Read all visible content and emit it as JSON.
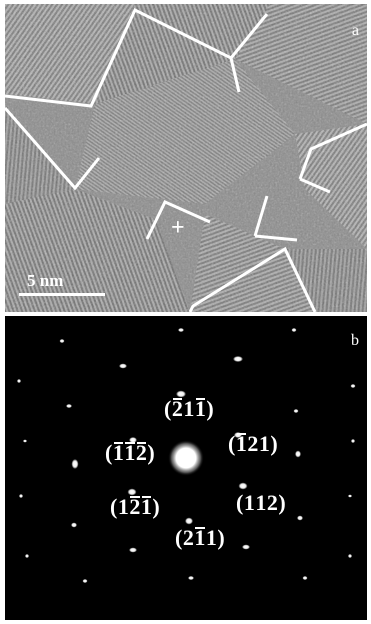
{
  "panel_a": {
    "label": "a",
    "marker": "+",
    "scale_bar_text": "5 nm"
  },
  "panel_b": {
    "label": "b",
    "indices": [
      {
        "text": "(-2 1 1-)",
        "digits": [
          "2",
          "1",
          "1"
        ],
        "bars": [
          true,
          false,
          true
        ]
      },
      {
        "text": "(-1 2 1)",
        "digits": [
          "1",
          "2",
          "1"
        ],
        "bars": [
          true,
          false,
          false
        ]
      },
      {
        "text": "(-1 -1 -2)",
        "digits": [
          "1",
          "1",
          "2"
        ],
        "bars": [
          true,
          true,
          true
        ]
      },
      {
        "text": "(1 1 2)",
        "digits": [
          "1",
          "1",
          "2"
        ],
        "bars": [
          false,
          false,
          false
        ]
      },
      {
        "text": "(1 -2 1-)",
        "digits": [
          "1",
          "2",
          "1"
        ],
        "bars": [
          false,
          true,
          true
        ]
      },
      {
        "text": "(2 -1 1)",
        "digits": [
          "2",
          "1",
          "1"
        ],
        "bars": [
          false,
          true,
          false
        ]
      }
    ]
  },
  "colors": {
    "annotation": "#ffffff",
    "tem_background": "#808080",
    "diffraction_background": "#000000"
  }
}
